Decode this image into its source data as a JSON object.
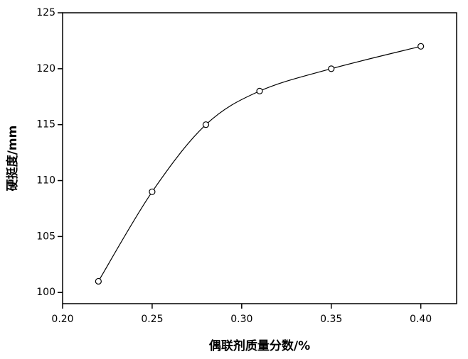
{
  "chart_data": {
    "type": "line",
    "smooth": true,
    "x_label": "偶联剂质量分数/%",
    "y_label": "硬挺度/mm",
    "series": [
      {
        "name": "硬挺度",
        "color": "#000000",
        "x": [
          0.22,
          0.25,
          0.28,
          0.31,
          0.35,
          0.4
        ],
        "values": [
          101,
          109,
          115,
          118,
          120,
          122
        ]
      }
    ],
    "xlim": [
      0.2,
      0.42
    ],
    "ylim": [
      99,
      125
    ],
    "xticks": [
      {
        "value": 0.2,
        "label": "0.20"
      },
      {
        "value": 0.25,
        "label": "0.25"
      },
      {
        "value": 0.3,
        "label": "0.30"
      },
      {
        "value": 0.35,
        "label": "0.35"
      },
      {
        "value": 0.4,
        "label": "0.40"
      }
    ],
    "yticks": [
      100,
      105,
      110,
      115,
      120,
      125
    ],
    "legend": false
  }
}
